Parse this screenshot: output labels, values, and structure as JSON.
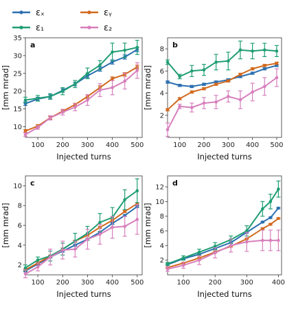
{
  "colors": {
    "ex": "#2a6fb0",
    "ey": "#d2691e",
    "e1": "#1f9e74",
    "e2": "#d77fbc"
  },
  "legend": [
    {
      "key": "ex",
      "label": "εₓ"
    },
    {
      "key": "ey",
      "label": "εᵧ"
    },
    {
      "key": "e1",
      "label": "ε₁"
    },
    {
      "key": "e2",
      "label": "ε₂"
    }
  ],
  "chart_data": [
    {
      "type": "line",
      "panel": "a",
      "xlabel": "Injected turns",
      "ylabel": "[mm mrad]",
      "xlim": [
        50,
        520
      ],
      "ylim": [
        7,
        35
      ],
      "xticks": [
        100,
        200,
        300,
        400,
        500
      ],
      "yticks": [
        10,
        15,
        20,
        25,
        30,
        35
      ],
      "x": [
        50,
        100,
        150,
        200,
        250,
        300,
        350,
        400,
        450,
        500
      ],
      "series": [
        {
          "key": "ex",
          "values": [
            16.5,
            17.8,
            18.5,
            20.2,
            22.0,
            24.3,
            26.2,
            28.2,
            29.6,
            31.7
          ],
          "err": [
            0.5,
            0.5,
            0.5,
            0.5,
            0.5,
            0.5,
            0.6,
            0.6,
            0.6,
            0.6
          ]
        },
        {
          "key": "ey",
          "values": [
            8.8,
            10.2,
            12.5,
            14.4,
            16.2,
            18.5,
            21.0,
            23.5,
            24.7,
            26.8
          ],
          "err": [
            0.4,
            0.4,
            0.4,
            0.4,
            0.4,
            0.5,
            0.5,
            0.5,
            0.5,
            0.5
          ]
        },
        {
          "key": "e1",
          "values": [
            17.5,
            18.0,
            18.5,
            20.0,
            22.0,
            25.0,
            27.3,
            31.0,
            31.5,
            32.3
          ],
          "err": [
            0.8,
            0.8,
            0.8,
            1.0,
            1.0,
            1.5,
            1.3,
            2.5,
            2.0,
            2.0
          ]
        },
        {
          "key": "e2",
          "values": [
            7.8,
            9.8,
            12.5,
            14.1,
            15.5,
            17.5,
            20.3,
            21.0,
            22.8,
            25.8
          ],
          "err": [
            0.5,
            0.5,
            0.6,
            0.8,
            1.0,
            1.5,
            1.8,
            2.0,
            2.2,
            2.2
          ]
        }
      ]
    },
    {
      "type": "line",
      "panel": "b",
      "xlabel": "Injected turns",
      "ylabel": "[mm mrad]",
      "xlim": [
        50,
        520
      ],
      "ylim": [
        0,
        9
      ],
      "xticks": [
        100,
        200,
        300,
        400,
        500
      ],
      "yticks": [
        2,
        4,
        6,
        8
      ],
      "x": [
        50,
        100,
        150,
        200,
        250,
        300,
        350,
        400,
        450,
        500
      ],
      "series": [
        {
          "key": "ex",
          "values": [
            5.0,
            4.7,
            4.6,
            4.8,
            5.0,
            5.2,
            5.5,
            5.8,
            6.2,
            6.5
          ],
          "err": [
            0.1,
            0.1,
            0.1,
            0.1,
            0.1,
            0.1,
            0.1,
            0.1,
            0.1,
            0.1
          ]
        },
        {
          "key": "ey",
          "values": [
            2.5,
            3.5,
            4.1,
            4.4,
            4.8,
            5.1,
            5.7,
            6.2,
            6.5,
            6.7
          ],
          "err": [
            0.1,
            0.1,
            0.1,
            0.1,
            0.1,
            0.1,
            0.1,
            0.1,
            0.1,
            0.1
          ]
        },
        {
          "key": "e1",
          "values": [
            6.8,
            5.5,
            6.0,
            6.1,
            6.8,
            6.9,
            7.9,
            7.8,
            7.9,
            7.8
          ],
          "err": [
            0.2,
            0.2,
            0.5,
            0.5,
            0.7,
            0.8,
            0.8,
            0.7,
            0.6,
            0.5
          ]
        },
        {
          "key": "e2",
          "values": [
            0.7,
            2.8,
            2.7,
            3.1,
            3.2,
            3.7,
            3.4,
            4.1,
            4.6,
            5.4
          ],
          "err": [
            0.6,
            0.2,
            0.4,
            0.5,
            0.6,
            0.5,
            0.8,
            0.8,
            0.8,
            0.8
          ]
        }
      ]
    },
    {
      "type": "line",
      "panel": "c",
      "xlabel": "Injected turns",
      "ylabel": "[mm mrad]",
      "xlim": [
        50,
        520
      ],
      "ylim": [
        1,
        11
      ],
      "xticks": [
        100,
        200,
        300,
        400,
        500
      ],
      "yticks": [
        2,
        4,
        6,
        8,
        10
      ],
      "x": [
        50,
        100,
        150,
        200,
        250,
        300,
        350,
        400,
        450,
        500
      ],
      "series": [
        {
          "key": "ex",
          "values": [
            1.4,
            2.1,
            2.8,
            3.4,
            4.0,
            4.6,
            5.3,
            6.2,
            7.0,
            7.9
          ],
          "err": [
            0.1,
            0.1,
            0.1,
            0.1,
            0.1,
            0.1,
            0.1,
            0.1,
            0.1,
            0.1
          ]
        },
        {
          "key": "ey",
          "values": [
            1.5,
            2.2,
            2.9,
            3.6,
            4.4,
            5.0,
            5.8,
            6.5,
            7.4,
            8.2
          ],
          "err": [
            0.1,
            0.1,
            0.1,
            0.1,
            0.1,
            0.1,
            0.1,
            0.1,
            0.1,
            0.1
          ]
        },
        {
          "key": "e1",
          "values": [
            1.7,
            2.5,
            2.9,
            3.6,
            4.4,
            5.2,
            6.3,
            6.8,
            8.6,
            9.5
          ],
          "err": [
            0.3,
            0.3,
            0.5,
            0.6,
            0.8,
            0.7,
            0.9,
            1.0,
            1.0,
            1.2
          ]
        },
        {
          "key": "e2",
          "values": [
            1.1,
            1.8,
            2.8,
            3.5,
            3.6,
            4.6,
            5.1,
            5.8,
            5.9,
            6.6
          ],
          "err": [
            0.4,
            0.4,
            0.8,
            0.9,
            0.8,
            1.0,
            1.0,
            1.1,
            1.0,
            1.5
          ]
        }
      ]
    },
    {
      "type": "line",
      "panel": "d",
      "xlabel": "Injected turns",
      "ylabel": "[mm mrad]",
      "xlim": [
        50,
        410
      ],
      "ylim": [
        0,
        13.5
      ],
      "xticks": [
        100,
        200,
        300,
        400
      ],
      "yticks": [
        2,
        4,
        6,
        8,
        10,
        12
      ],
      "x": [
        50,
        100,
        150,
        200,
        250,
        300,
        350,
        375,
        400
      ],
      "series": [
        {
          "key": "ex",
          "values": [
            1.4,
            2.2,
            2.8,
            3.6,
            4.4,
            5.8,
            7.2,
            7.8,
            9.1
          ],
          "err": [
            0.1,
            0.1,
            0.1,
            0.1,
            0.1,
            0.1,
            0.1,
            0.1,
            0.1
          ]
        },
        {
          "key": "ey",
          "values": [
            1.0,
            1.6,
            2.3,
            3.1,
            3.9,
            4.9,
            6.3,
            6.9,
            7.7
          ],
          "err": [
            0.1,
            0.1,
            0.1,
            0.1,
            0.1,
            0.1,
            0.1,
            0.1,
            0.1
          ]
        },
        {
          "key": "e1",
          "values": [
            1.5,
            2.3,
            3.1,
            3.9,
            4.8,
            6.0,
            9.0,
            10.0,
            11.7
          ],
          "err": [
            0.2,
            0.3,
            0.4,
            0.5,
            0.5,
            0.7,
            1.0,
            1.0,
            1.1
          ]
        },
        {
          "key": "e2",
          "values": [
            0.8,
            1.3,
            2.0,
            3.0,
            4.0,
            4.5,
            4.7,
            4.7,
            4.7
          ],
          "err": [
            0.3,
            0.4,
            0.6,
            0.7,
            0.9,
            1.3,
            1.4,
            1.4,
            1.4
          ]
        }
      ]
    }
  ]
}
